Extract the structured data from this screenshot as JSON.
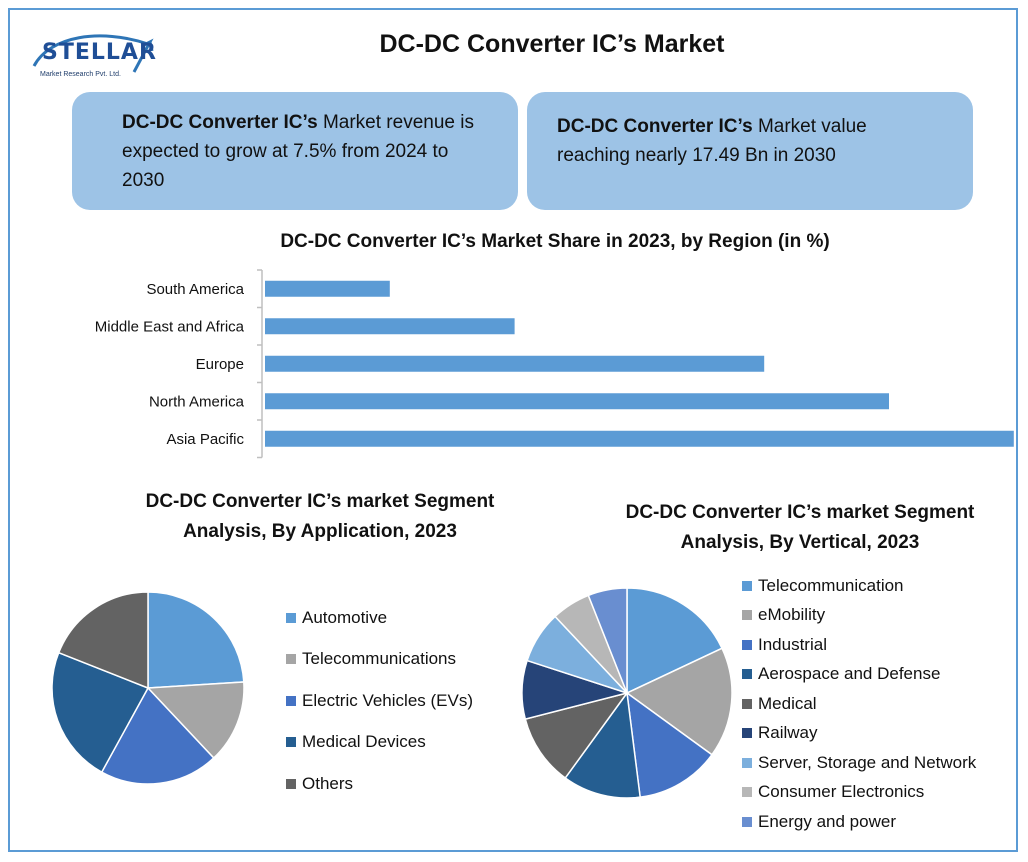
{
  "logo": {
    "name": "STELLAR",
    "subtitle": "Market Research Pvt. Ltd."
  },
  "title": "DC-DC Converter IC’s Market",
  "callouts": [
    {
      "bold": "DC-DC Converter IC’s",
      "text": " Market revenue is expected to grow at 7.5% from 2024 to 2030"
    },
    {
      "bold": "DC-DC Converter IC’s",
      "text": " Market value reaching nearly 17.49 Bn in 2030"
    }
  ],
  "colors": {
    "bar": "#5b9bd5",
    "callout_bg": "#9dc3e6",
    "frame": "#5b9bd5"
  },
  "chart_data": [
    {
      "type": "bar",
      "orientation": "horizontal",
      "title": "DC-DC Converter IC’s Market Share in 2023, by Region (in %)",
      "categories": [
        "South America",
        "Middle East and Africa",
        "Europe",
        "North America",
        "Asia Pacific"
      ],
      "values": [
        8,
        16,
        32,
        40,
        48
      ],
      "xlim": [
        0,
        50
      ],
      "grid": false,
      "legend": "none"
    },
    {
      "type": "pie",
      "title": "DC-DC Converter IC’s market Segment Analysis, By Application, 2023",
      "categories": [
        "Automotive",
        "Telecommunications",
        "Electric Vehicles (EVs)",
        "Medical Devices",
        "Others"
      ],
      "values": [
        24,
        14,
        20,
        23,
        19
      ],
      "colors": [
        "#5b9bd5",
        "#a5a5a5",
        "#4472c4",
        "#255e91",
        "#636363"
      ],
      "legend": "right"
    },
    {
      "type": "pie",
      "title": "DC-DC Converter IC’s market Segment Analysis, By Vertical, 2023",
      "categories": [
        "Telecommunication",
        "eMobility",
        "Industrial",
        "Aerospace and Defense",
        "Medical",
        "Railway",
        "Server, Storage and Network",
        "Consumer Electronics",
        "Energy and power"
      ],
      "values": [
        18,
        17,
        13,
        12,
        11,
        9,
        8,
        6,
        6
      ],
      "colors": [
        "#5b9bd5",
        "#a5a5a5",
        "#4472c4",
        "#255e91",
        "#636363",
        "#264478",
        "#7cafdd",
        "#b7b7b7",
        "#698ed0"
      ],
      "legend": "right"
    }
  ]
}
